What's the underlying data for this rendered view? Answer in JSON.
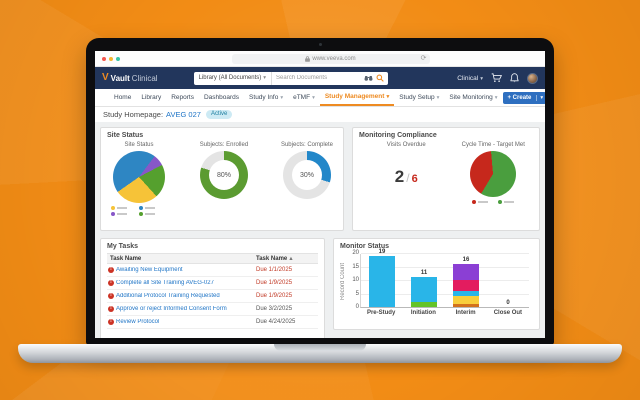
{
  "theme": {
    "accent_orange": "#ee8b22",
    "navy": "#22365c",
    "link_blue": "#2176c7",
    "alert_red": "#c6281c",
    "badge_bg": "#cdeaf4",
    "badge_text": "#1d7fa0"
  },
  "browser": {
    "url": "www.veeva.com",
    "refresh_icon": "⟳"
  },
  "app": {
    "brand": {
      "vault": "Vault",
      "suffix": "Clinical"
    },
    "topbar": {
      "library_dropdown": "Library (All Documents)",
      "search_placeholder": "Search Documents",
      "user_menu": "Clinical"
    },
    "nav": {
      "items": [
        {
          "label": "Home"
        },
        {
          "label": "Library"
        },
        {
          "label": "Reports"
        },
        {
          "label": "Dashboards"
        },
        {
          "label": "Study Info"
        },
        {
          "label": "eTMF"
        },
        {
          "label": "Study Management"
        },
        {
          "label": "Study Setup"
        },
        {
          "label": "Site Monitoring"
        }
      ],
      "create_label": "+ Create"
    },
    "page_title": {
      "prefix": "Study Homepage:",
      "study": "AVEG 027",
      "badge": "Active"
    }
  },
  "panels": {
    "site_status": {
      "title": "Site Status",
      "chart1_title": "Site Status",
      "chart2_title": "Subjects: Enrolled",
      "chart3_title": "Subjects: Complete"
    },
    "monitoring_compliance": {
      "title": "Monitoring Compliance",
      "visits_overdue_label": "Visits Overdue",
      "visits_overdue_value": "2",
      "separator": "/",
      "visits_overdue_total": "6",
      "cycle_time_label": "Cycle Time - Target Met"
    },
    "my_tasks": {
      "title": "My Tasks",
      "col1": "Task Name",
      "col2": "Task Name",
      "sort_arrow": "▲",
      "rows": [
        {
          "name": "Awaiting New Equipment",
          "due": "Due 1/1/2025",
          "overdue": true
        },
        {
          "name": "Complete all Site Training AVEG-027",
          "due": "Due 1/9/2025",
          "overdue": true
        },
        {
          "name": "Additional Protocol Training Requested",
          "due": "Due 1/9/2025",
          "overdue": true
        },
        {
          "name": "Approve or reject Informed Consent Form",
          "due": "Due 3/2/2025",
          "overdue": false
        },
        {
          "name": "Review Protocol",
          "due": "Due 4/24/2025",
          "overdue": false
        }
      ]
    },
    "monitor_status": {
      "title": "Monitor Status"
    }
  },
  "chart_data": [
    {
      "type": "pie",
      "title": "Site Status",
      "start_angle": 235,
      "slices": [
        {
          "label": "blue-slice",
          "value": 45,
          "color": "#2e86c3"
        },
        {
          "label": "purple-slice",
          "value": 7,
          "color": "#8757c8"
        },
        {
          "label": "green-slice",
          "value": 21,
          "color": "#55a02e"
        },
        {
          "label": "yellow-slice",
          "value": 27,
          "color": "#f6c338"
        }
      ],
      "legend_colors": [
        "#f6c338",
        "#2e86c3",
        "#8757c8",
        "#55a02e"
      ],
      "legend_position": "bottom"
    },
    {
      "type": "donut",
      "title": "Subjects: Enrolled",
      "value": 80,
      "center_label": "80%",
      "color": "#5b9b31",
      "track_color": "#e4e4e4"
    },
    {
      "type": "donut",
      "title": "Subjects: Complete",
      "value": 30,
      "center_label": "30%",
      "color": "#2287c9",
      "track_color": "#e4e4e4"
    },
    {
      "type": "pie",
      "title": "Cycle Time - Target Met",
      "start_angle": 355,
      "slices": [
        {
          "label": "target-met",
          "value": 60,
          "color": "#4a9e3e"
        },
        {
          "label": "target-not-met",
          "value": 40,
          "color": "#c6281c"
        }
      ],
      "legend_colors": [
        "#c6281c",
        "#4a9e3e"
      ],
      "legend_position": "bottom"
    },
    {
      "type": "kpi",
      "title": "Visits Overdue",
      "value": 2,
      "total": 6
    },
    {
      "type": "bar",
      "title": "Monitor Status",
      "ylabel": "Record Count",
      "ylim": [
        0,
        20
      ],
      "yticks": [
        0,
        5,
        10,
        15,
        20
      ],
      "grid": true,
      "categories": [
        "Pre-Study",
        "Initiation",
        "Interim",
        "Close Out"
      ],
      "totals": [
        19,
        11,
        16,
        0
      ],
      "stacking": "segments listed bottom-up",
      "bars": [
        {
          "category": "Pre-Study",
          "total": 19,
          "segments": [
            {
              "value": 19,
              "color": "#29b5e8"
            }
          ]
        },
        {
          "category": "Initiation",
          "total": 11,
          "segments": [
            {
              "value": 2,
              "color": "#64c328"
            },
            {
              "value": 9,
              "color": "#29b5e8"
            }
          ]
        },
        {
          "category": "Interim",
          "total": 16,
          "segments": [
            {
              "value": 1,
              "color": "#d2711c"
            },
            {
              "value": 3,
              "color": "#f8ce3c"
            },
            {
              "value": 2,
              "color": "#29b5e8"
            },
            {
              "value": 4,
              "color": "#e31c5f"
            },
            {
              "value": 6,
              "color": "#8b3fd4"
            }
          ]
        },
        {
          "category": "Close Out",
          "total": 0,
          "segments": []
        }
      ]
    }
  ]
}
